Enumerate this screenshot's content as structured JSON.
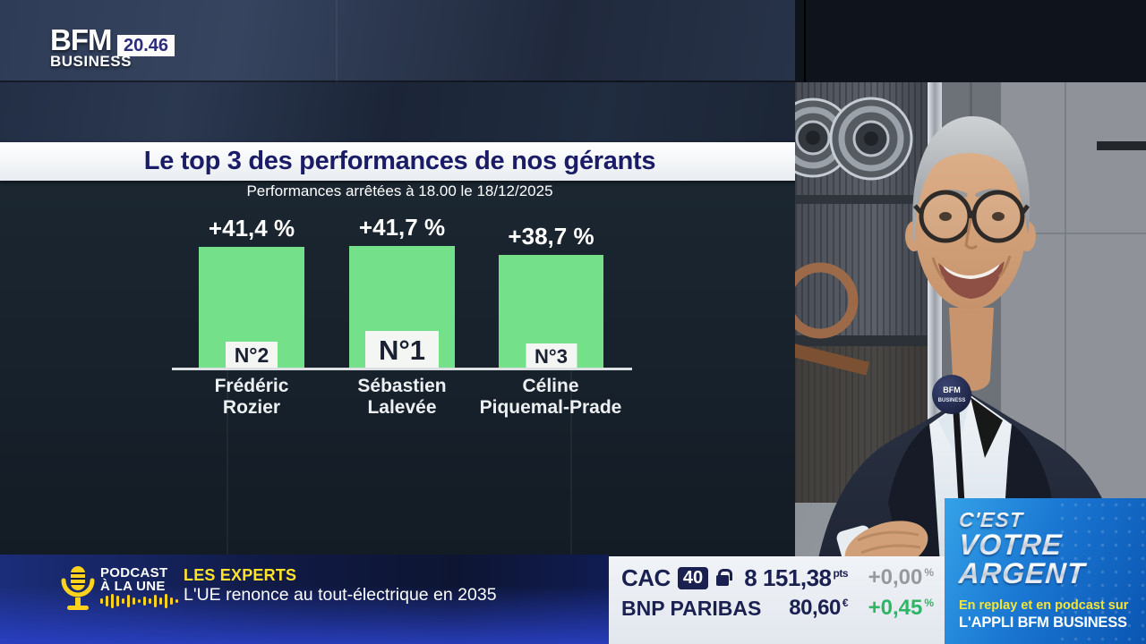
{
  "channel": {
    "name_line1": "BFM",
    "name_line2": "BUSINESS",
    "time": "20.46"
  },
  "chart_data": {
    "type": "bar",
    "title": "Le top 3 des performances de nos gérants",
    "subtitle": "Performances arrêtées à 18.00 le 18/12/2025",
    "categories": [
      "Frédéric Rozier",
      "Sébastien Lalevée",
      "Céline Piquemal-Prade"
    ],
    "values": [
      41.4,
      41.7,
      38.7
    ],
    "value_labels": [
      "+41,4 %",
      "+41,7 %",
      "+38,7 %"
    ],
    "ranks": [
      "N°2",
      "N°1",
      "N°3"
    ],
    "bar_color": "#75e08a",
    "ylim": [
      0,
      45
    ],
    "grid": false,
    "legend": false
  },
  "names": [
    {
      "line1": "Frédéric",
      "line2": "Rozier"
    },
    {
      "line1": "Sébastien",
      "line2": "Lalevée"
    },
    {
      "line1": "Céline",
      "line2": "Piquemal-Prade"
    }
  ],
  "ticker": {
    "podcast_line1": "PODCAST",
    "podcast_line2": "À LA UNE",
    "program": "LES EXPERTS",
    "headline": "L'UE renonce au tout-électrique en 2035"
  },
  "market": {
    "rows": [
      {
        "name": "CAC",
        "badge": "40",
        "value": "8 151,38",
        "unit": "pts",
        "change": "+0,00",
        "change_unit": "%",
        "trend": "flat"
      },
      {
        "name": "BNP PARIBAS",
        "value": "80,60",
        "unit": "€",
        "change": "+0,45",
        "change_unit": "%",
        "trend": "up"
      }
    ]
  },
  "promo": {
    "line1": "C'EST",
    "line2": "VOTRE",
    "line3": "ARGENT",
    "sub1": "En replay et en podcast sur",
    "sub2": "L'APPLI BFM BUSINESS"
  },
  "studio": {
    "mic_line1": "BFM",
    "mic_line2": "BUSINESS"
  },
  "colors": {
    "bar_green": "#75e08a",
    "title_navy": "#1b1c66",
    "accent_yellow": "#ffd21e",
    "ticker_yellow": "#ffe32b",
    "market_navy": "#1a2050",
    "change_flat_gray": "#97999d",
    "change_up_green": "#2fb566"
  }
}
